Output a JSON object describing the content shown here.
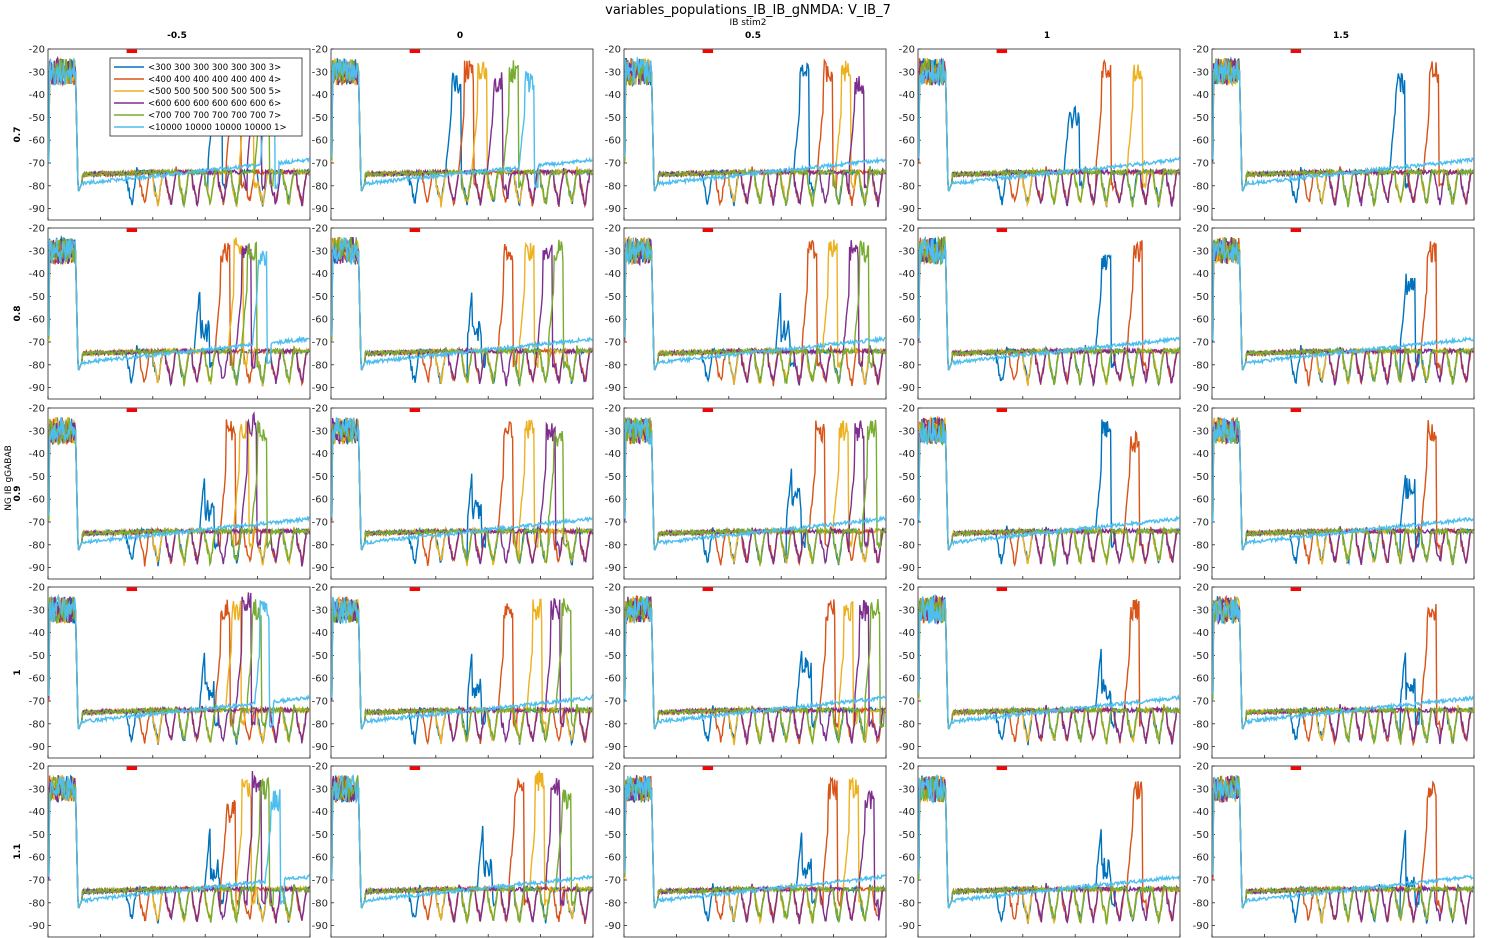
{
  "figure": {
    "title": "variables_populations_IB_IB_gNMDA: V_IB_7",
    "col_group_label": "IB stim2",
    "row_group_label": "NG IB gGABAB"
  },
  "chart_data": {
    "type": "line",
    "grid": false,
    "columns": [
      "-0.5",
      "0",
      "0.5",
      "1",
      "1.5"
    ],
    "rows": [
      "0.7",
      "0.8",
      "0.9",
      "1",
      "1.1"
    ],
    "xlim": [
      0,
      1000
    ],
    "ylim": [
      -95,
      -20
    ],
    "xticks": [
      0,
      200,
      400,
      600,
      800,
      1000
    ],
    "yticks": [
      -90,
      -80,
      -70,
      -60,
      -50,
      -40,
      -30,
      -20
    ],
    "stim_marker": {
      "color": "#ff0000",
      "x": [
        300,
        340
      ],
      "y": -21
    },
    "legend_position": "top-left of first panel",
    "series": [
      {
        "name": "<300 300 300 300 300 300 3>",
        "color": "#0072bd",
        "dip_start": 300,
        "period": 300
      },
      {
        "name": "<400 400 400 400 400 400 4>",
        "color": "#d95319",
        "dip_start": 400,
        "period": 400
      },
      {
        "name": "<500 500 500 500 500 500 5>",
        "color": "#edb120",
        "dip_start": 500,
        "period": 500
      },
      {
        "name": "<600 600 600 600 600 600 6>",
        "color": "#7e2f8e",
        "dip_start": 600,
        "period": 600
      },
      {
        "name": "<700 700 700 700 700 700 7>",
        "color": "#77ac30",
        "dip_start": 700,
        "period": 700
      },
      {
        "name": "<10000 10000 10000 10000 1>",
        "color": "#4dbeee",
        "dip_start": 10000,
        "period": 10000
      }
    ],
    "panels": [
      [
        {
          "spikes": [
            [
              650,
              -25
            ],
            [
              720,
              -40
            ],
            [
              770,
              -25
            ],
            [
              800,
              -35
            ],
            [
              830,
              -30
            ],
            [
              850,
              -25
            ]
          ]
        },
        {
          "spikes": [
            [
              480,
              -30
            ],
            [
              530,
              -25
            ],
            [
              580,
              -25
            ],
            [
              640,
              -30
            ],
            [
              700,
              -25
            ],
            [
              760,
              -30
            ]
          ]
        },
        {
          "spikes": [
            [
              690,
              -25
            ],
            [
              780,
              -25
            ],
            [
              850,
              -25
            ],
            [
              900,
              -30
            ]
          ]
        },
        {
          "spikes": [
            [
              600,
              -45
            ],
            [
              720,
              -25
            ],
            [
              840,
              -25
            ]
          ]
        },
        {
          "spikes": [
            [
              720,
              -30
            ],
            [
              850,
              -25
            ]
          ]
        }
      ],
      [
        {
          "spikes": [
            [
              600,
              -60
            ],
            [
              680,
              -25
            ],
            [
              730,
              -22
            ],
            [
              760,
              -25
            ],
            [
              780,
              -25
            ],
            [
              820,
              -30
            ]
          ]
        },
        {
          "spikes": [
            [
              560,
              -60
            ],
            [
              680,
              -25
            ],
            [
              760,
              -25
            ],
            [
              830,
              -25
            ],
            [
              870,
              -25
            ]
          ]
        },
        {
          "spikes": [
            [
              620,
              -60
            ],
            [
              720,
              -25
            ],
            [
              800,
              -25
            ],
            [
              880,
              -25
            ],
            [
              920,
              -25
            ]
          ]
        },
        {
          "spikes": [
            [
              720,
              -30
            ],
            [
              840,
              -25
            ]
          ]
        },
        {
          "spikes": [
            [
              760,
              -40
            ],
            [
              840,
              -25
            ]
          ]
        }
      ],
      [
        {
          "spikes": [
            [
              620,
              -60
            ],
            [
              700,
              -25
            ],
            [
              750,
              -25
            ],
            [
              780,
              -22
            ],
            [
              820,
              -25
            ]
          ]
        },
        {
          "spikes": [
            [
              560,
              -60
            ],
            [
              680,
              -25
            ],
            [
              760,
              -25
            ],
            [
              840,
              -25
            ],
            [
              870,
              -30
            ]
          ]
        },
        {
          "spikes": [
            [
              660,
              -55
            ],
            [
              750,
              -25
            ],
            [
              840,
              -25
            ],
            [
              900,
              -25
            ],
            [
              950,
              -25
            ]
          ]
        },
        {
          "spikes": [
            [
              720,
              -25
            ],
            [
              830,
              -30
            ]
          ]
        },
        {
          "spikes": [
            [
              760,
              -50
            ],
            [
              840,
              -25
            ]
          ]
        }
      ],
      [
        {
          "spikes": [
            [
              620,
              -60
            ],
            [
              680,
              -25
            ],
            [
              720,
              -25
            ],
            [
              760,
              -22
            ],
            [
              800,
              -25
            ],
            [
              830,
              -25
            ]
          ]
        },
        {
          "spikes": [
            [
              560,
              -60
            ],
            [
              680,
              -25
            ],
            [
              790,
              -25
            ],
            [
              860,
              -25
            ],
            [
              900,
              -25
            ]
          ]
        },
        {
          "spikes": [
            [
              700,
              -50
            ],
            [
              790,
              -25
            ],
            [
              860,
              -25
            ],
            [
              920,
              -25
            ],
            [
              960,
              -25
            ]
          ]
        },
        {
          "spikes": [
            [
              720,
              -60
            ],
            [
              830,
              -25
            ]
          ]
        },
        {
          "spikes": [
            [
              760,
              -60
            ],
            [
              840,
              -25
            ]
          ]
        }
      ],
      [
        {
          "spikes": [
            [
              640,
              -60
            ],
            [
              700,
              -35
            ],
            [
              760,
              -25
            ],
            [
              800,
              -22
            ],
            [
              830,
              -25
            ],
            [
              870,
              -30
            ]
          ]
        },
        {
          "spikes": [
            [
              600,
              -60
            ],
            [
              720,
              -25
            ],
            [
              800,
              -22
            ],
            [
              860,
              -25
            ],
            [
              900,
              -30
            ]
          ]
        },
        {
          "spikes": [
            [
              700,
              -60
            ],
            [
              800,
              -25
            ],
            [
              880,
              -25
            ],
            [
              940,
              -30
            ]
          ]
        },
        {
          "spikes": [
            [
              720,
              -60
            ],
            [
              840,
              -25
            ]
          ]
        },
        {
          "spikes": [
            [
              760,
              -65
            ],
            [
              840,
              -25
            ]
          ]
        }
      ]
    ]
  }
}
